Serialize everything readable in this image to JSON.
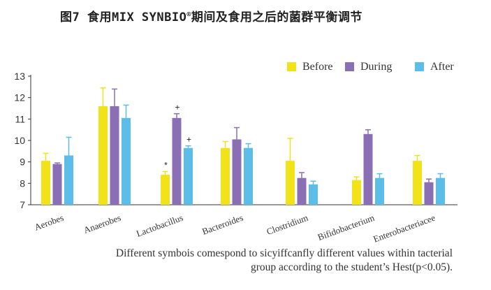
{
  "title": {
    "main": "图7 食用MIX SYNBIO",
    "registered": "®",
    "rest": "期间及食用之后的菌群平衡调节"
  },
  "footnote": {
    "line1": "Different symbois comespond to sicyiffcanfly different values within tacterial",
    "line2": "group according to the student’s Hest(p<0.05)."
  },
  "chart_data": {
    "type": "bar",
    "title": "图7 食用MIX SYNBIO®期间及食用之后的菌群平衡调节",
    "xlabel": "",
    "ylabel": "",
    "ylim": [
      7,
      13
    ],
    "yticks": [
      7,
      8,
      9,
      10,
      11,
      12,
      13
    ],
    "grid": false,
    "legend_position": "top-right",
    "categories": [
      "Aerobes",
      "Anaerobes",
      "Lactobacillus",
      "Bacteroides",
      "Clostridium",
      "Bifidobacterium",
      "Enterobacteriacee"
    ],
    "series": [
      {
        "name": "Before",
        "color": "#f2e21a",
        "values": [
          9.05,
          11.6,
          8.4,
          9.65,
          9.05,
          8.15,
          9.05
        ],
        "errors": [
          0.35,
          0.85,
          0.15,
          0.3,
          1.05,
          0.15,
          0.25
        ]
      },
      {
        "name": "During",
        "color": "#8b6fb5",
        "values": [
          8.9,
          11.6,
          11.05,
          10.05,
          8.25,
          10.3,
          8.05
        ],
        "errors": [
          0.05,
          0.8,
          0.2,
          0.55,
          0.25,
          0.2,
          0.15
        ]
      },
      {
        "name": "After",
        "color": "#5bbde8",
        "values": [
          9.3,
          11.05,
          9.65,
          9.65,
          7.95,
          8.25,
          8.25
        ],
        "errors": [
          0.85,
          0.6,
          0.1,
          0.2,
          0.15,
          0.2,
          0.2
        ]
      }
    ],
    "annotations": [
      {
        "category": "Lactobacillus",
        "series": "Before",
        "symbol": "*"
      },
      {
        "category": "Lactobacillus",
        "series": "During",
        "symbol": "+"
      },
      {
        "category": "Lactobacillus",
        "series": "After",
        "symbol": "+"
      }
    ]
  }
}
